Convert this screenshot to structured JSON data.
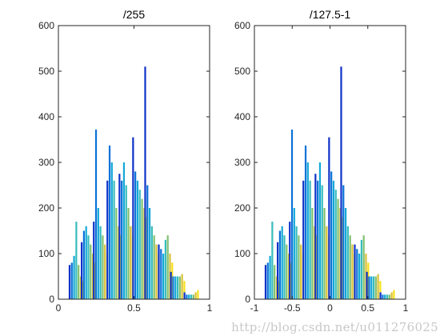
{
  "watermark": "http://blog.csdn.net/u011276025",
  "chart_data": [
    {
      "type": "bar",
      "title": "/255",
      "xlim": [
        0,
        1
      ],
      "ylim": [
        0,
        600
      ],
      "xticks": [
        "0",
        "0.5",
        "1"
      ],
      "yticks": [
        "0",
        "100",
        "200",
        "300",
        "400",
        "500",
        "600"
      ],
      "series_colors": [
        "#0e32c8",
        "#0a72d8",
        "#12a8d8",
        "#38bcbc",
        "#7ec070",
        "#d8c038",
        "#f8e018"
      ],
      "groups": [
        {
          "x": 0.12,
          "values": [
            75,
            80,
            95,
            170,
            75,
            50,
            40
          ]
        },
        {
          "x": 0.2,
          "values": [
            125,
            150,
            160,
            140,
            120,
            100,
            80
          ]
        },
        {
          "x": 0.28,
          "values": [
            170,
            372,
            200,
            160,
            140,
            120,
            100
          ]
        },
        {
          "x": 0.37,
          "values": [
            260,
            337,
            300,
            260,
            200,
            160,
            140
          ]
        },
        {
          "x": 0.45,
          "values": [
            275,
            260,
            300,
            250,
            200,
            160,
            140
          ]
        },
        {
          "x": 0.54,
          "values": [
            355,
            280,
            260,
            240,
            220,
            200,
            180
          ]
        },
        {
          "x": 0.62,
          "values": [
            510,
            250,
            200,
            160,
            140,
            120,
            100
          ]
        },
        {
          "x": 0.71,
          "values": [
            120,
            110,
            100,
            130,
            140,
            100,
            80
          ]
        },
        {
          "x": 0.79,
          "values": [
            60,
            50,
            50,
            50,
            50,
            55,
            40
          ]
        },
        {
          "x": 0.88,
          "values": [
            15,
            10,
            10,
            10,
            10,
            15,
            20
          ]
        }
      ]
    },
    {
      "type": "bar",
      "title": "/127.5-1",
      "xlim": [
        -1,
        1
      ],
      "ylim": [
        0,
        600
      ],
      "xticks": [
        "-1",
        "-0.5",
        "0",
        "0.5",
        "1"
      ],
      "yticks": [
        "0",
        "100",
        "200",
        "300",
        "400",
        "500",
        "600"
      ],
      "series_colors": [
        "#0e32c8",
        "#0a72d8",
        "#12a8d8",
        "#38bcbc",
        "#7ec070",
        "#d8c038",
        "#f8e018"
      ],
      "groups": [
        {
          "x": -0.76,
          "values": [
            75,
            80,
            95,
            170,
            75,
            50,
            40
          ]
        },
        {
          "x": -0.6,
          "values": [
            125,
            150,
            160,
            140,
            120,
            100,
            80
          ]
        },
        {
          "x": -0.44,
          "values": [
            170,
            372,
            200,
            160,
            140,
            120,
            100
          ]
        },
        {
          "x": -0.26,
          "values": [
            260,
            337,
            300,
            260,
            200,
            160,
            140
          ]
        },
        {
          "x": -0.1,
          "values": [
            275,
            260,
            300,
            250,
            200,
            160,
            140
          ]
        },
        {
          "x": 0.08,
          "values": [
            355,
            280,
            260,
            240,
            220,
            200,
            180
          ]
        },
        {
          "x": 0.24,
          "values": [
            510,
            250,
            200,
            160,
            140,
            120,
            100
          ]
        },
        {
          "x": 0.42,
          "values": [
            120,
            110,
            100,
            130,
            140,
            100,
            80
          ]
        },
        {
          "x": 0.58,
          "values": [
            60,
            50,
            50,
            50,
            50,
            55,
            40
          ]
        },
        {
          "x": 0.76,
          "values": [
            15,
            10,
            10,
            10,
            10,
            15,
            20
          ]
        }
      ]
    }
  ]
}
